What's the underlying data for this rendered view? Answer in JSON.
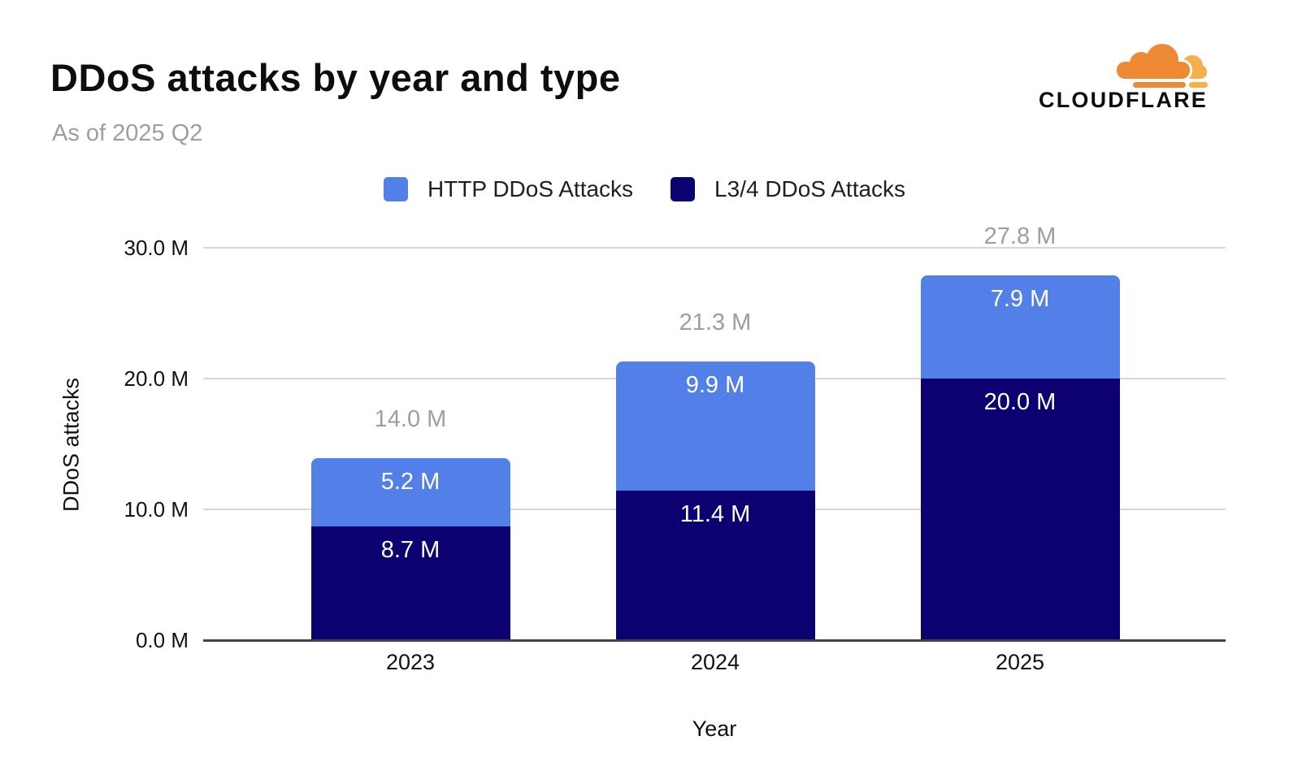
{
  "header": {
    "title": "DDoS attacks by year and type",
    "subtitle": "As of 2025 Q2"
  },
  "logo": {
    "brand": "CLOUDFLARE",
    "cloud_primary_color": "#EE8A33",
    "cloud_secondary_color": "#F5B04A",
    "wordmark_color": "#0d0d0d"
  },
  "chart_data": {
    "type": "bar",
    "stacked": true,
    "title": "DDoS attacks by year and type",
    "subtitle": "As of 2025 Q2",
    "categories": [
      "2023",
      "2024",
      "2025"
    ],
    "series": [
      {
        "name": "HTTP DDoS Attacks",
        "color": "#5280E8",
        "values": [
          5.2,
          9.9,
          7.9
        ],
        "labels": [
          "5.2 M",
          "9.9 M",
          "7.9 M"
        ]
      },
      {
        "name": "L3/4 DDoS Attacks",
        "color": "#0B0170",
        "values": [
          8.7,
          11.4,
          20.0
        ],
        "labels": [
          "8.7 M",
          "11.4 M",
          "20.0 M"
        ]
      }
    ],
    "totals": {
      "values": [
        14.0,
        21.3,
        27.8
      ],
      "labels": [
        "14.0 M",
        "21.3 M",
        "27.8 M"
      ]
    },
    "xlabel": "Year",
    "ylabel": "DDoS attacks",
    "ylim": [
      0,
      30
    ],
    "yticks": [
      {
        "value": 0,
        "label": "0.0 M"
      },
      {
        "value": 10,
        "label": "10.0 M"
      },
      {
        "value": 20,
        "label": "20.0 M"
      },
      {
        "value": 30,
        "label": "30.0 M"
      }
    ],
    "grid": true,
    "legend_position": "top-center",
    "total_label_color": "#9e9e9e",
    "segment_label_color": "#ffffff",
    "gridline_color": "#d8d8d8",
    "axis_line_color": "#424242"
  }
}
